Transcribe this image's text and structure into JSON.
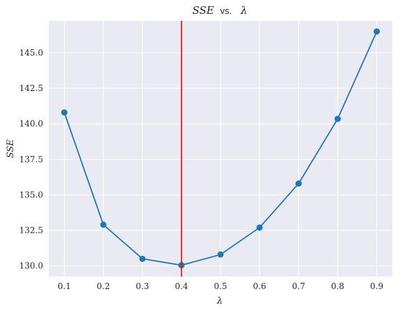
{
  "chart_data": {
    "type": "line",
    "title": "SSE vs.  λ",
    "title_parts": {
      "lhs": "SSE",
      "mid": "vs.",
      "rhs": "λ"
    },
    "xlabel": "λ",
    "ylabel": "SSE",
    "x": [
      0.1,
      0.2,
      0.3,
      0.4,
      0.5,
      0.6,
      0.7,
      0.8,
      0.9
    ],
    "series": [
      {
        "values": [
          140.8,
          132.9,
          130.5,
          130.05,
          130.8,
          132.7,
          135.8,
          140.35,
          146.5
        ]
      }
    ],
    "xticks": [
      "0.1",
      "0.2",
      "0.3",
      "0.4",
      "0.5",
      "0.6",
      "0.7",
      "0.8",
      "0.9"
    ],
    "yticks": [
      "130.0",
      "132.5",
      "135.0",
      "137.5",
      "140.0",
      "142.5",
      "145.0"
    ],
    "xlim": [
      0.06,
      0.94
    ],
    "ylim": [
      129.25,
      147.25
    ],
    "vline_x": 0.4,
    "grid": true,
    "colors": {
      "background": "#eaeaf2",
      "grid": "#ffffff",
      "line": "#1f77b4",
      "vline": "#e41a1c"
    }
  }
}
